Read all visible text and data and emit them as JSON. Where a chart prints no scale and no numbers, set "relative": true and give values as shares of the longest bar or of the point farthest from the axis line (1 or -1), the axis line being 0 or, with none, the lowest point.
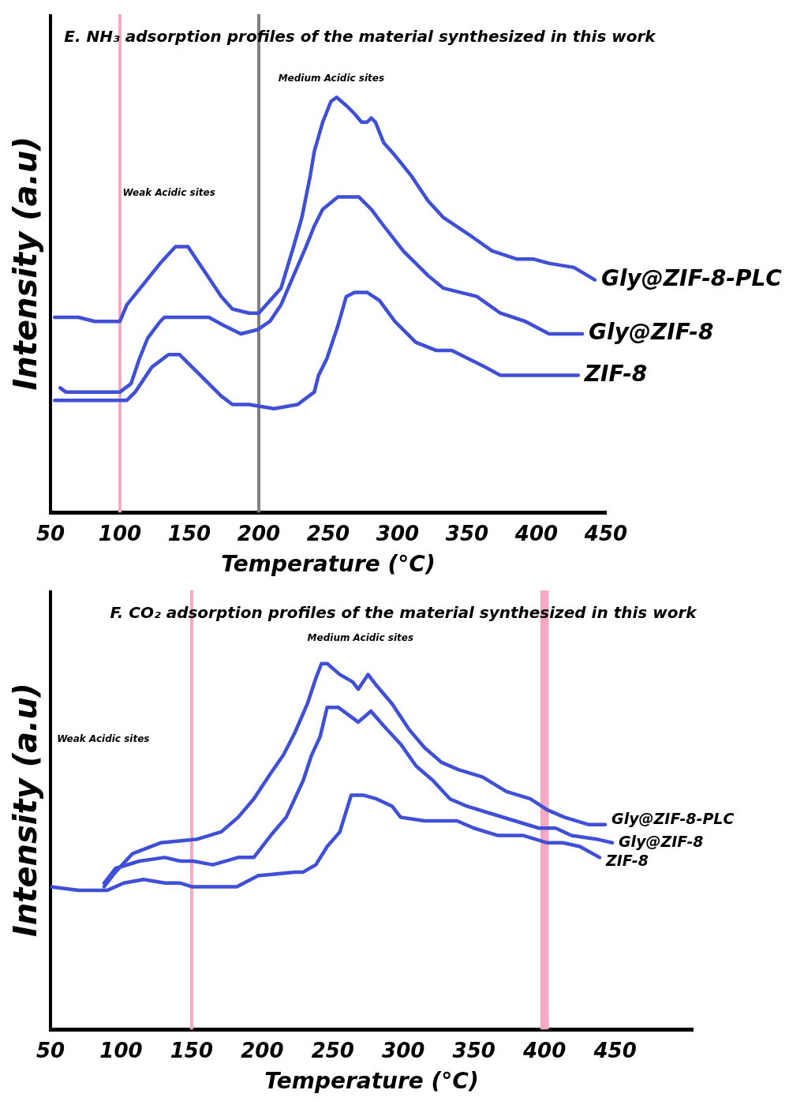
{
  "chart_data": [
    {
      "type": "line",
      "title": "E. NH₃ adsorption profiles of the material synthesized in this work",
      "xlabel": "Temperature (°C)",
      "ylabel": "Intensity (a.u)",
      "relative": true,
      "xlim": [
        50,
        450
      ],
      "xticks": [
        50,
        100,
        150,
        200,
        250,
        300,
        350,
        400,
        450
      ],
      "grid": false,
      "legend": false,
      "marker": "none",
      "line_style": "solid",
      "annotations": [
        "Weak Acidic sites",
        "Medium Acidic sites"
      ],
      "ref_lines": [
        {
          "axis": "x",
          "value": 100,
          "color": "#f7a8c4"
        },
        {
          "axis": "x",
          "value": 200,
          "color": "#808080"
        }
      ],
      "series": [
        {
          "name": "Gly@ZIF-8-PLC",
          "color": "#3f4fd6",
          "x": [
            53,
            70,
            82,
            100,
            105,
            117,
            129,
            140,
            149,
            161,
            173,
            181,
            193,
            200,
            208,
            216,
            225,
            231,
            237,
            240,
            246,
            252,
            256,
            263,
            269,
            274,
            278,
            281,
            284,
            290,
            298,
            310,
            322,
            333,
            351,
            368,
            386,
            398,
            409,
            427,
            442
          ],
          "values": [
            0.47,
            0.47,
            0.46,
            0.46,
            0.5,
            0.55,
            0.6,
            0.64,
            0.64,
            0.58,
            0.52,
            0.49,
            0.48,
            0.48,
            0.51,
            0.54,
            0.64,
            0.71,
            0.81,
            0.87,
            0.94,
            0.99,
            1,
            0.98,
            0.96,
            0.94,
            0.94,
            0.95,
            0.94,
            0.89,
            0.86,
            0.81,
            0.75,
            0.71,
            0.67,
            0.63,
            0.61,
            0.61,
            0.6,
            0.59,
            0.56
          ]
        },
        {
          "name": "Gly@ZIF-8",
          "color": "#3f4fd6",
          "x": [
            57,
            61,
            82,
            100,
            108,
            114,
            120,
            129,
            132,
            164,
            175,
            187,
            199,
            208,
            216,
            225,
            234,
            240,
            246,
            257,
            272,
            281,
            290,
            304,
            322,
            333,
            345,
            357,
            374,
            392,
            409,
            421,
            433
          ],
          "values": [
            0.3,
            0.29,
            0.29,
            0.29,
            0.31,
            0.37,
            0.42,
            0.46,
            0.47,
            0.47,
            0.45,
            0.43,
            0.44,
            0.46,
            0.5,
            0.57,
            0.64,
            0.69,
            0.73,
            0.76,
            0.76,
            0.73,
            0.69,
            0.63,
            0.57,
            0.54,
            0.53,
            0.52,
            0.48,
            0.46,
            0.43,
            0.43,
            0.43
          ]
        },
        {
          "name": "ZIF-8",
          "color": "#3f4fd6",
          "x": [
            53,
            105,
            111,
            123,
            135,
            143,
            152,
            164,
            173,
            181,
            193,
            211,
            228,
            240,
            243,
            249,
            257,
            263,
            269,
            278,
            287,
            298,
            313,
            328,
            339,
            351,
            363,
            374,
            404,
            430
          ],
          "values": [
            0.27,
            0.27,
            0.29,
            0.35,
            0.38,
            0.38,
            0.35,
            0.31,
            0.28,
            0.26,
            0.26,
            0.25,
            0.26,
            0.29,
            0.33,
            0.37,
            0.45,
            0.52,
            0.53,
            0.53,
            0.51,
            0.46,
            0.41,
            0.39,
            0.39,
            0.37,
            0.35,
            0.33,
            0.33,
            0.33
          ]
        }
      ]
    },
    {
      "type": "line",
      "title": "F. CO₂ adsorption profiles of the material synthesized in this work",
      "xlabel": "Temperature (°C)",
      "ylabel": "Intensity (a.u)",
      "relative": true,
      "xlim": [
        50,
        505
      ],
      "xticks": [
        50,
        100,
        150,
        200,
        250,
        300,
        350,
        400,
        450
      ],
      "grid": false,
      "legend": false,
      "marker": "none",
      "line_style": "solid",
      "annotations": [
        "Weak Acidic sites",
        "Medium Acidic sites"
      ],
      "ref_lines": [
        {
          "axis": "x",
          "value": 150,
          "color": "#f7a8c4"
        }
      ],
      "bands": [
        {
          "axis": "x",
          "from": 397,
          "to": 403,
          "color": "#f7a8c4"
        }
      ],
      "series": [
        {
          "name": "Gly@ZIF-8-PLC",
          "color": "#3f4fd6",
          "x": [
            88,
            96,
            108,
            128,
            154,
            171,
            183,
            194,
            206,
            215,
            223,
            232,
            238,
            242,
            246,
            255,
            264,
            268,
            275,
            281,
            292,
            304,
            315,
            327,
            339,
            356,
            373,
            390,
            402,
            414,
            431,
            443
          ],
          "values": [
            0.39,
            0.43,
            0.48,
            0.51,
            0.52,
            0.54,
            0.58,
            0.63,
            0.7,
            0.75,
            0.81,
            0.89,
            0.96,
            1,
            1,
            0.97,
            0.95,
            0.93,
            0.97,
            0.94,
            0.89,
            0.82,
            0.77,
            0.73,
            0.71,
            0.69,
            0.65,
            0.63,
            0.6,
            0.58,
            0.56,
            0.56
          ]
        },
        {
          "name": "Gly@ZIF-8",
          "color": "#3f4fd6",
          "x": [
            88,
            96,
            113,
            131,
            142,
            151,
            165,
            183,
            194,
            206,
            217,
            229,
            235,
            241,
            246,
            254,
            268,
            277,
            286,
            298,
            309,
            321,
            333,
            345,
            362,
            379,
            396,
            408,
            419,
            437,
            448
          ],
          "values": [
            0.4,
            0.44,
            0.46,
            0.47,
            0.46,
            0.46,
            0.45,
            0.47,
            0.47,
            0.53,
            0.58,
            0.68,
            0.75,
            0.8,
            0.88,
            0.88,
            0.84,
            0.87,
            0.83,
            0.78,
            0.72,
            0.68,
            0.63,
            0.61,
            0.59,
            0.57,
            0.55,
            0.55,
            0.53,
            0.52,
            0.51
          ]
        },
        {
          "name": "ZIF-8",
          "color": "#3f4fd6",
          "x": [
            50,
            70,
            90,
            102,
            116,
            131,
            142,
            150,
            165,
            182,
            197,
            223,
            229,
            238,
            246,
            255,
            263,
            272,
            281,
            292,
            298,
            315,
            338,
            350,
            367,
            385,
            402,
            413,
            425,
            439
          ],
          "values": [
            0.39,
            0.38,
            0.38,
            0.4,
            0.41,
            0.4,
            0.4,
            0.39,
            0.39,
            0.39,
            0.42,
            0.43,
            0.43,
            0.45,
            0.5,
            0.54,
            0.64,
            0.64,
            0.63,
            0.61,
            0.58,
            0.57,
            0.57,
            0.55,
            0.53,
            0.53,
            0.51,
            0.51,
            0.5,
            0.47
          ]
        }
      ]
    }
  ]
}
